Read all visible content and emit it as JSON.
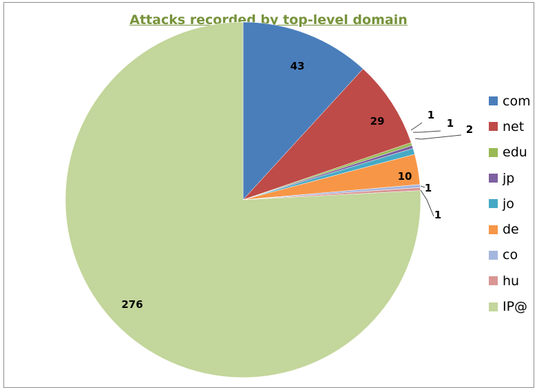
{
  "chart_data": {
    "type": "pie",
    "title": "Attacks recorded by top-level domain",
    "slices": [
      {
        "label": "com",
        "value": 43,
        "color": "#4a7ebb"
      },
      {
        "label": "net",
        "value": 29,
        "color": "#be4b48"
      },
      {
        "label": "edu",
        "value": 1,
        "color": "#98b954"
      },
      {
        "label": "jp",
        "value": 1,
        "color": "#7d60a0"
      },
      {
        "label": "jo",
        "value": 2,
        "color": "#46aac5"
      },
      {
        "label": "de",
        "value": 10,
        "color": "#f79646"
      },
      {
        "label": "co",
        "value": 1,
        "color": "#a5b6df"
      },
      {
        "label": "hu",
        "value": 1,
        "color": "#d99694"
      },
      {
        "label": "IP@",
        "value": 276,
        "color": "#c3d69b"
      }
    ],
    "legend_position": "right"
  }
}
